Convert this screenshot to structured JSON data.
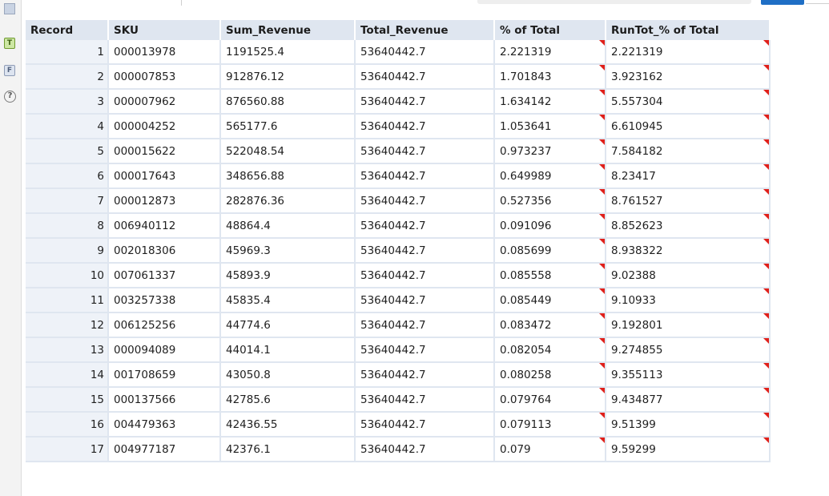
{
  "colors": {
    "header_bg": "#dfe6f0",
    "record_col_bg": "#eef2f8",
    "flag": "#e0201a",
    "accent": "#1f6fc5"
  },
  "rail": {
    "icons": [
      "table-icon",
      "t-tool-icon",
      "f-tool-icon",
      "help-icon"
    ],
    "t_label": "T",
    "f_label": "F",
    "help_label": "?"
  },
  "table": {
    "columns": [
      "Record",
      "SKU",
      "Sum_Revenue",
      "Total_Revenue",
      "% of Total",
      "RunTot_% of Total"
    ],
    "rows": [
      [
        "1",
        "000013978",
        "1191525.4",
        "53640442.7",
        "2.221319",
        "2.221319"
      ],
      [
        "2",
        "000007853",
        "912876.12",
        "53640442.7",
        "1.701843",
        "3.923162"
      ],
      [
        "3",
        "000007962",
        "876560.88",
        "53640442.7",
        "1.634142",
        "5.557304"
      ],
      [
        "4",
        "000004252",
        "565177.6",
        "53640442.7",
        "1.053641",
        "6.610945"
      ],
      [
        "5",
        "000015622",
        "522048.54",
        "53640442.7",
        "0.973237",
        "7.584182"
      ],
      [
        "6",
        "000017643",
        "348656.88",
        "53640442.7",
        "0.649989",
        "8.23417"
      ],
      [
        "7",
        "000012873",
        "282876.36",
        "53640442.7",
        "0.527356",
        "8.761527"
      ],
      [
        "8",
        "006940112",
        "48864.4",
        "53640442.7",
        "0.091096",
        "8.852623"
      ],
      [
        "9",
        "002018306",
        "45969.3",
        "53640442.7",
        "0.085699",
        "8.938322"
      ],
      [
        "10",
        "007061337",
        "45893.9",
        "53640442.7",
        "0.085558",
        "9.02388"
      ],
      [
        "11",
        "003257338",
        "45835.4",
        "53640442.7",
        "0.085449",
        "9.10933"
      ],
      [
        "12",
        "006125256",
        "44774.6",
        "53640442.7",
        "0.083472",
        "9.192801"
      ],
      [
        "13",
        "000094089",
        "44014.1",
        "53640442.7",
        "0.082054",
        "9.274855"
      ],
      [
        "14",
        "001708659",
        "43050.8",
        "53640442.7",
        "0.080258",
        "9.355113"
      ],
      [
        "15",
        "000137566",
        "42785.6",
        "53640442.7",
        "0.079764",
        "9.434877"
      ],
      [
        "16",
        "004479363",
        "42436.55",
        "53640442.7",
        "0.079113",
        "9.51399"
      ],
      [
        "17",
        "004977187",
        "42376.1",
        "53640442.7",
        "0.079",
        "9.59299"
      ]
    ]
  }
}
